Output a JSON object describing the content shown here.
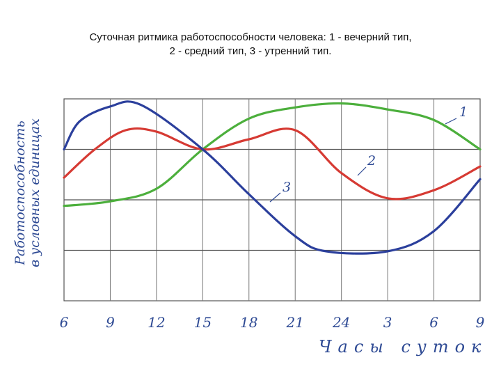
{
  "title": {
    "line1": "Суточная ритмика работоспособности человека: 1 - вечерний тип,",
    "line2": "2 - средний тип, 3 - утренний тип."
  },
  "chart_data": {
    "type": "line",
    "xlabel": "Часы суток",
    "ylabel_line1": "Работоспособность",
    "ylabel_line2": "в условных единицах",
    "x_ticks": [
      "6",
      "9",
      "12",
      "15",
      "18",
      "21",
      "24",
      "3",
      "6",
      "9"
    ],
    "ylim": [
      0,
      4
    ],
    "grid": true,
    "series": [
      {
        "name": "1",
        "color": "#4caf3c",
        "values": [
          {
            "x": 0,
            "y": 1.88
          },
          {
            "x": 3,
            "y": 1.97
          },
          {
            "x": 6,
            "y": 2.22
          },
          {
            "x": 9,
            "y": 3.0
          },
          {
            "x": 12,
            "y": 3.61
          },
          {
            "x": 15,
            "y": 3.83
          },
          {
            "x": 18,
            "y": 3.91
          },
          {
            "x": 21,
            "y": 3.79
          },
          {
            "x": 24,
            "y": 3.58
          },
          {
            "x": 27,
            "y": 3.0
          }
        ]
      },
      {
        "name": "2",
        "color": "#d63a33",
        "values": [
          {
            "x": 0,
            "y": 2.44
          },
          {
            "x": 2,
            "y": 3.0
          },
          {
            "x": 4,
            "y": 3.38
          },
          {
            "x": 6,
            "y": 3.35
          },
          {
            "x": 9,
            "y": 3.0
          },
          {
            "x": 12,
            "y": 3.2
          },
          {
            "x": 15,
            "y": 3.38
          },
          {
            "x": 18,
            "y": 2.53
          },
          {
            "x": 21,
            "y": 2.03
          },
          {
            "x": 24,
            "y": 2.19
          },
          {
            "x": 27,
            "y": 2.66
          }
        ]
      },
      {
        "name": "3",
        "color": "#2b3f9c",
        "values": [
          {
            "x": 0,
            "y": 3.0
          },
          {
            "x": 1,
            "y": 3.55
          },
          {
            "x": 3,
            "y": 3.85
          },
          {
            "x": 5,
            "y": 3.88
          },
          {
            "x": 9,
            "y": 3.0
          },
          {
            "x": 12,
            "y": 2.11
          },
          {
            "x": 15,
            "y": 1.28
          },
          {
            "x": 17,
            "y": 0.98
          },
          {
            "x": 21,
            "y": 0.98
          },
          {
            "x": 24,
            "y": 1.38
          },
          {
            "x": 27,
            "y": 2.41
          }
        ]
      }
    ]
  }
}
